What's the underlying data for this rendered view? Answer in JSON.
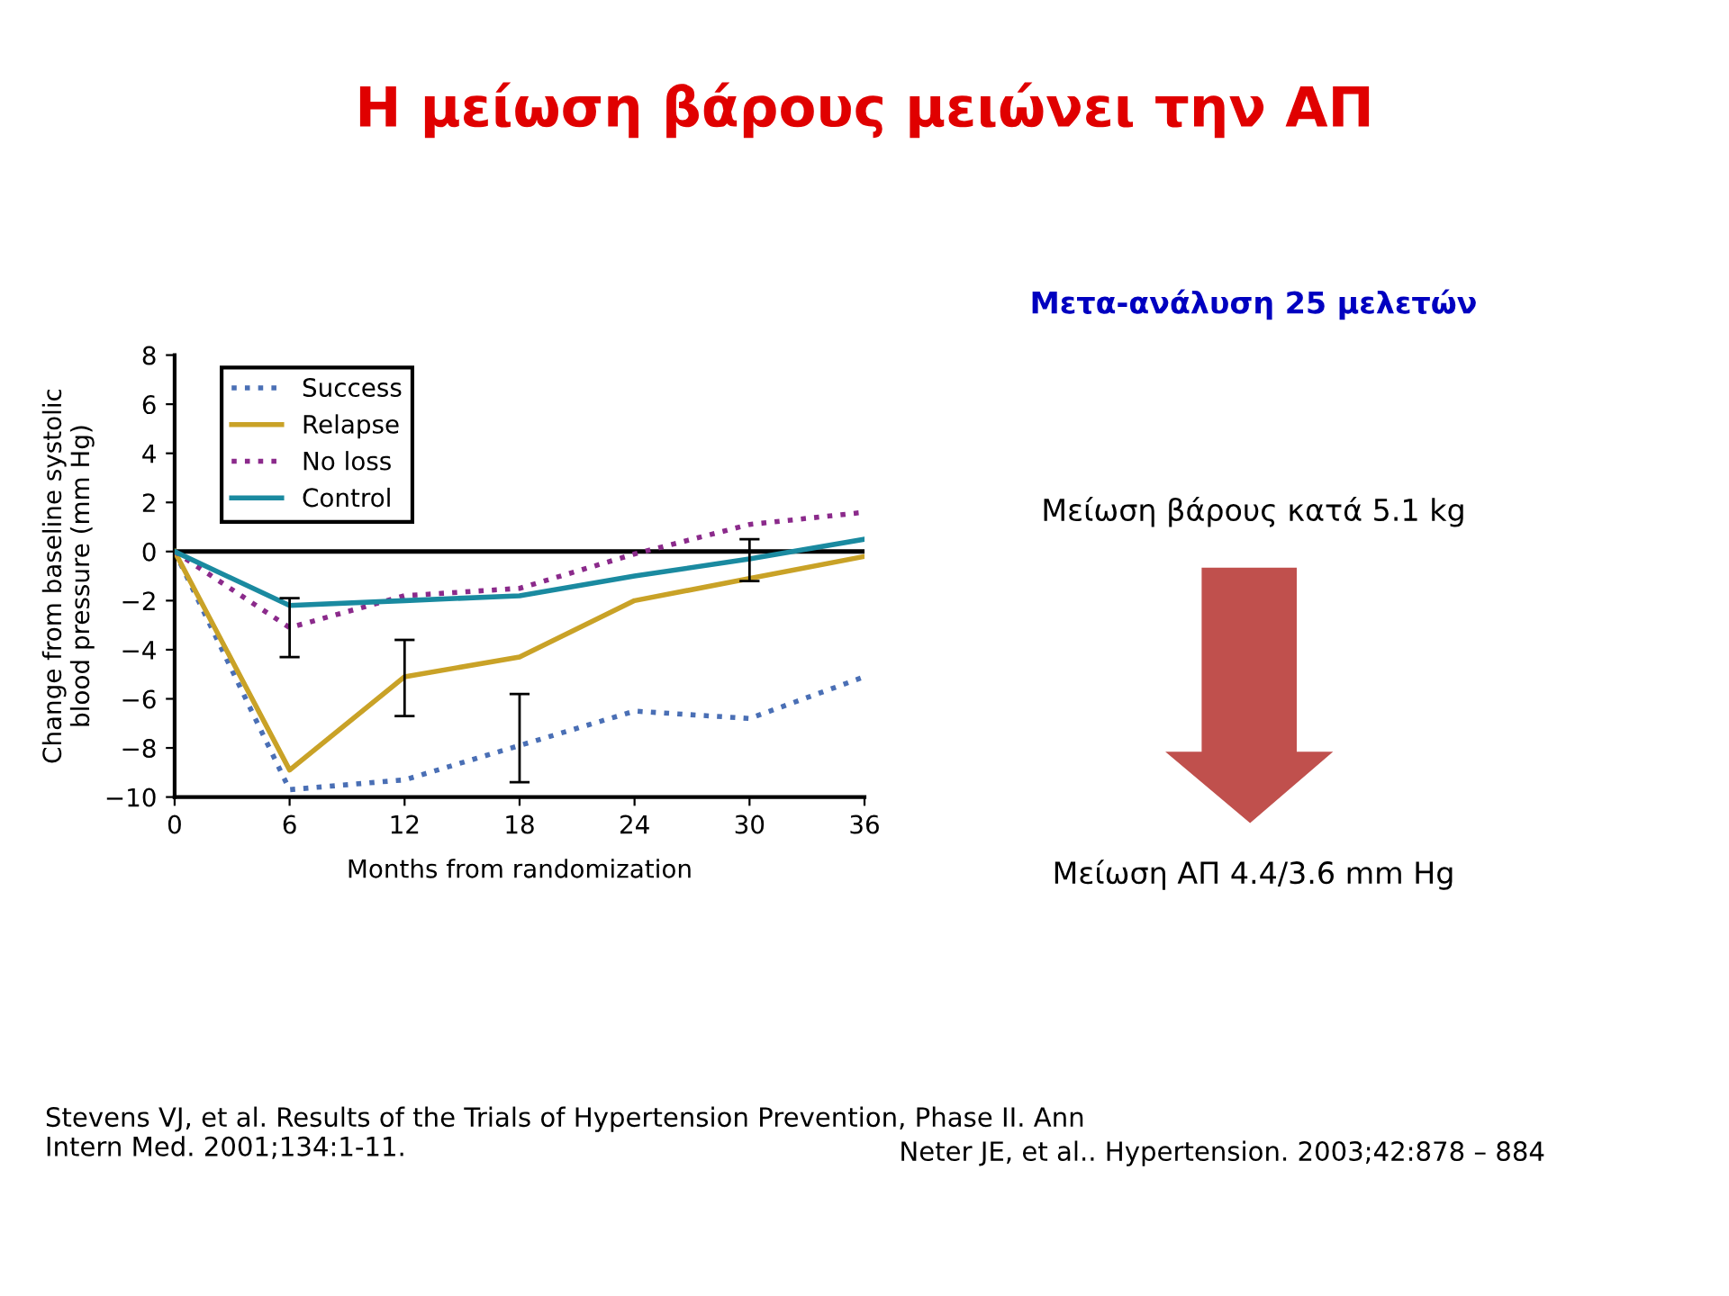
{
  "chart_data": {
    "type": "line",
    "title": "Η μείωση βάρους μειώνει την ΑΠ",
    "xlabel": "Months from randomization",
    "ylabel": "Change from baseline systolic\nblood pressure (mm Hg)",
    "x": [
      0,
      6,
      12,
      18,
      24,
      30,
      36
    ],
    "series": [
      {
        "name": "Success",
        "color": "#4a6fb5",
        "line_style": "dotted",
        "values": [
          0,
          -9.7,
          -9.3,
          -7.9,
          -6.5,
          -6.8,
          -5.1
        ],
        "errors": [
          null,
          null,
          null,
          [
            -9.4,
            -5.8
          ],
          null,
          null,
          null
        ]
      },
      {
        "name": "Relapse",
        "color": "#c9a227",
        "line_style": "solid",
        "values": [
          0,
          -8.9,
          -5.1,
          -4.3,
          -2.0,
          -1.1,
          -0.2
        ],
        "errors": [
          null,
          null,
          [
            -6.7,
            -3.6
          ],
          null,
          null,
          null,
          null
        ]
      },
      {
        "name": "No loss",
        "color": "#8b2a8b",
        "line_style": "dotted",
        "values": [
          0,
          -3.1,
          -1.8,
          -1.5,
          -0.1,
          1.1,
          1.6
        ],
        "errors": [
          null,
          [
            -4.3,
            -1.9
          ],
          null,
          null,
          null,
          null,
          null
        ]
      },
      {
        "name": "Control",
        "color": "#1a8aa0",
        "line_style": "solid",
        "values": [
          0,
          -2.2,
          -2.0,
          -1.8,
          -1.0,
          -0.3,
          0.5
        ],
        "errors": [
          null,
          null,
          null,
          null,
          null,
          [
            -1.2,
            0.5
          ],
          null
        ]
      }
    ],
    "xlim": [
      0,
      36
    ],
    "ylim": [
      -10,
      8
    ],
    "xticks": [
      0,
      6,
      12,
      18,
      24,
      30,
      36
    ],
    "yticks": [
      -10,
      -8,
      -6,
      -4,
      -2,
      0,
      2,
      4,
      6,
      8
    ],
    "ref_lines": [
      {
        "axis": "y",
        "value": 0,
        "color": "#000000"
      }
    ],
    "grid": false,
    "legend": "top left",
    "marker": "none",
    "annotations": [
      "Μετα-ανάλυση 25 μελετών",
      "Μείωση βάρους κατά 5.1 kg",
      "Μείωση ΑΠ 4.4/3.6 mm Hg",
      "Stevens VJ, et al. Results of the Trials of Hypertension Prevention, Phase II. Ann Intern Med. 2001;134:1-11.",
      "Neter JE, et al.. Hypertension. 2003;42:878 – 884"
    ]
  }
}
